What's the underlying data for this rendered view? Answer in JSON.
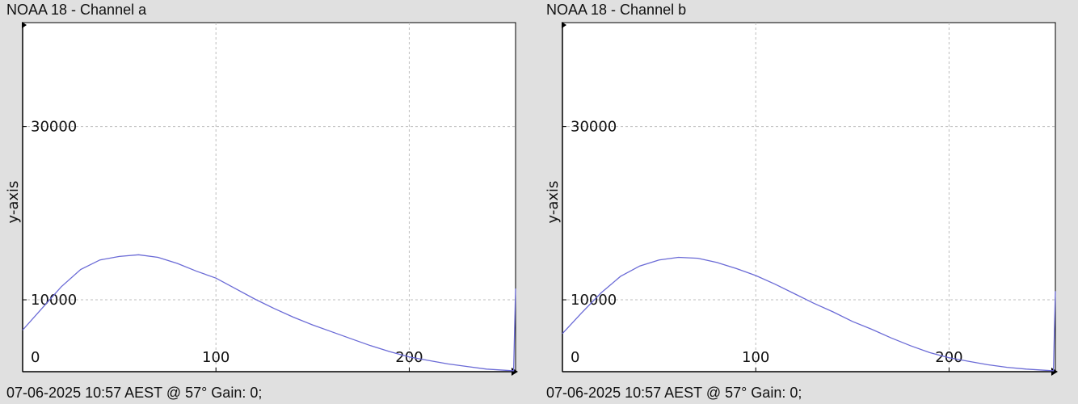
{
  "colors": {
    "background": "#e0e0e0",
    "plot_background": "#ffffff",
    "line": "#6a6ad6",
    "grid": "#bdbdbd",
    "axis": "#000000"
  },
  "panels": [
    {
      "title": "NOAA 18 - Channel a",
      "footer": "07-06-2025 10:57 AEST @ 57° Gain: 0;"
    },
    {
      "title": "NOAA 18 - Channel b",
      "footer": "07-06-2025 10:57 AEST @ 57° Gain: 0;"
    }
  ],
  "chart_data": [
    {
      "type": "line",
      "title": "NOAA 18 - Channel a",
      "xlabel": "",
      "ylabel": "y-axis",
      "xlim": [
        0,
        255
      ],
      "ylim": [
        1700,
        42000
      ],
      "x_ticks": [
        0,
        100,
        200
      ],
      "y_ticks": [
        10000,
        30000
      ],
      "grid": true,
      "series": [
        {
          "x": [
            0,
            10,
            20,
            30,
            40,
            50,
            60,
            70,
            80,
            90,
            100,
            110,
            120,
            130,
            140,
            150,
            160,
            170,
            180,
            190,
            200,
            210,
            220,
            230,
            240,
            254,
            255
          ],
          "y": [
            6500,
            9000,
            11500,
            13500,
            14600,
            15000,
            15200,
            14900,
            14200,
            13300,
            12500,
            11300,
            10100,
            9000,
            8000,
            7100,
            6300,
            5500,
            4700,
            4000,
            3400,
            3000,
            2600,
            2300,
            2000,
            1800,
            11300
          ]
        }
      ]
    },
    {
      "type": "line",
      "title": "NOAA 18 - Channel b",
      "xlabel": "",
      "ylabel": "y-axis",
      "xlim": [
        0,
        255
      ],
      "ylim": [
        1700,
        42000
      ],
      "x_ticks": [
        0,
        100,
        200
      ],
      "y_ticks": [
        10000,
        30000
      ],
      "grid": true,
      "series": [
        {
          "x": [
            0,
            10,
            20,
            30,
            40,
            50,
            60,
            70,
            80,
            90,
            100,
            110,
            120,
            130,
            140,
            150,
            160,
            170,
            180,
            190,
            200,
            210,
            220,
            230,
            240,
            254,
            255
          ],
          "y": [
            6100,
            8500,
            10800,
            12700,
            13900,
            14600,
            14900,
            14800,
            14300,
            13600,
            12800,
            11800,
            10700,
            9600,
            8600,
            7500,
            6600,
            5600,
            4700,
            3900,
            3300,
            2900,
            2500,
            2200,
            2000,
            1800,
            11000
          ]
        }
      ]
    }
  ]
}
